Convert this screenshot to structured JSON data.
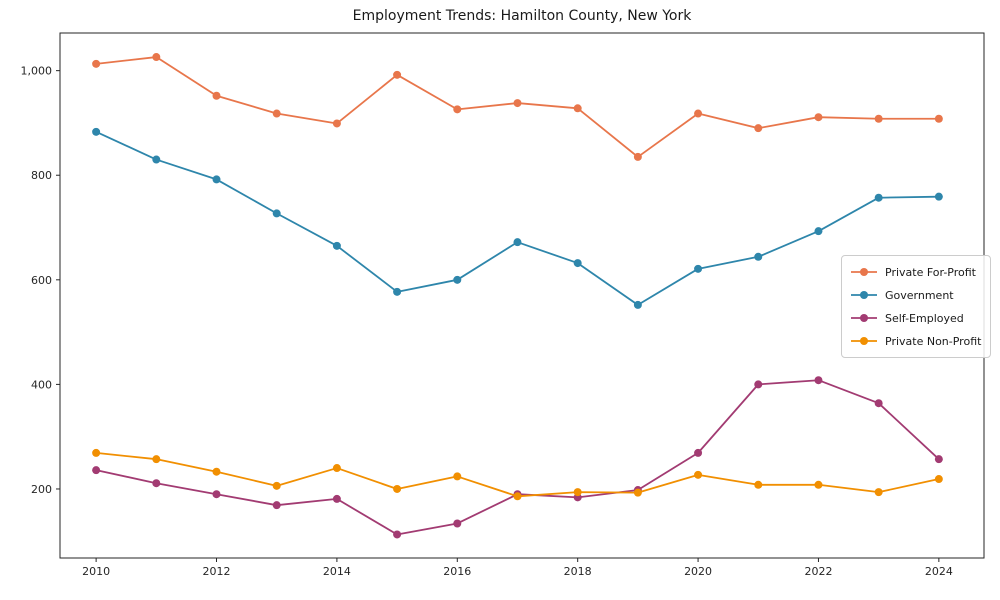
{
  "chart_data": {
    "type": "line",
    "title": "Employment Trends: Hamilton County, New York",
    "xlabel": "",
    "ylabel": "",
    "x": [
      2010,
      2011,
      2012,
      2013,
      2014,
      2015,
      2016,
      2017,
      2018,
      2019,
      2020,
      2021,
      2022,
      2023,
      2024
    ],
    "series": [
      {
        "name": "Private For-Profit",
        "color": "#E8764B",
        "values": [
          1013,
          1026,
          952,
          918,
          899,
          992,
          926,
          938,
          928,
          835,
          918,
          890,
          911,
          908,
          908
        ]
      },
      {
        "name": "Government",
        "color": "#2E86AB",
        "values": [
          883,
          830,
          792,
          727,
          665,
          577,
          600,
          672,
          632,
          552,
          621,
          644,
          693,
          757,
          759
        ]
      },
      {
        "name": "Self-Employed",
        "color": "#A23B72",
        "values": [
          236,
          211,
          190,
          169,
          181,
          113,
          134,
          190,
          184,
          198,
          269,
          400,
          408,
          364,
          257
        ]
      },
      {
        "name": "Private Non-Profit",
        "color": "#F18F01",
        "values": [
          269,
          257,
          233,
          206,
          240,
          200,
          224,
          186,
          194,
          193,
          227,
          208,
          208,
          194,
          219
        ]
      }
    ],
    "xticks": [
      2010,
      2012,
      2014,
      2016,
      2018,
      2020,
      2022,
      2024
    ],
    "xtick_labels": [
      "2010",
      "2012",
      "2014",
      "2016",
      "2018",
      "2020",
      "2022",
      "2024"
    ],
    "yticks": [
      200,
      400,
      600,
      800,
      1000
    ],
    "ytick_labels": [
      "200",
      "400",
      "600",
      "800",
      "1,000"
    ],
    "xlim": [
      2009.4,
      2024.75
    ],
    "ylim": [
      68,
      1072
    ],
    "grid": false,
    "legend_position": "center right"
  }
}
